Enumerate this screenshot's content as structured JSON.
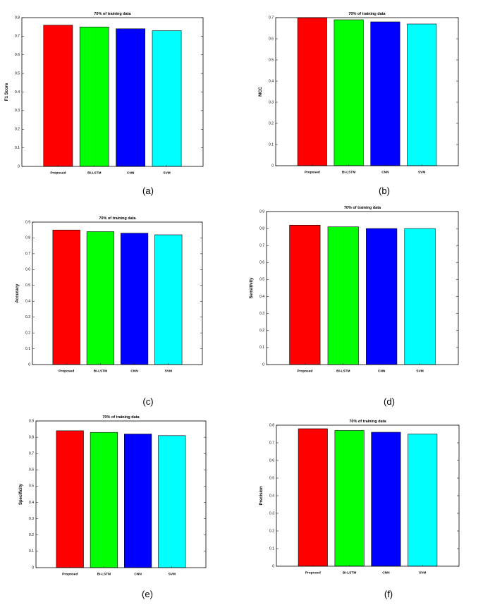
{
  "charts": [
    {
      "id": "a",
      "caption": "(a)"
    },
    {
      "id": "b",
      "caption": "(b)"
    },
    {
      "id": "c",
      "caption": "(c)"
    },
    {
      "id": "d",
      "caption": "(d)"
    },
    {
      "id": "e",
      "caption": "(e)"
    },
    {
      "id": "f",
      "caption": "(f)"
    }
  ],
  "colors": {
    "Proposed": "#ff0000",
    "Bi-LSTM": "#00ff00",
    "CNN": "#0000ff",
    "SVM": "#00ffff"
  },
  "chart_data": [
    {
      "type": "bar",
      "title": "70% of training data",
      "ylabel": "F1 Score",
      "categories": [
        "Proposed",
        "Bi-LSTM",
        "CNN",
        "SVM"
      ],
      "values": [
        0.76,
        0.75,
        0.74,
        0.73
      ],
      "ylim": [
        0,
        0.8
      ],
      "yticks": [
        "0",
        "0.1",
        "0.2",
        "0.3",
        "0.4",
        "0.5",
        "0.6",
        "0.7",
        "0.8"
      ],
      "grid": false
    },
    {
      "type": "bar",
      "title": "70% of training data",
      "ylabel": "MCC",
      "categories": [
        "Proposed",
        "Bi-LSTM",
        "CNN",
        "SVM"
      ],
      "values": [
        0.7,
        0.69,
        0.68,
        0.67
      ],
      "ylim": [
        0,
        0.7
      ],
      "yticks": [
        "0",
        "0.1",
        "0.2",
        "0.3",
        "0.4",
        "0.5",
        "0.6",
        "0.7"
      ],
      "grid": false
    },
    {
      "type": "bar",
      "title": "70% of training data",
      "ylabel": "Accuracy",
      "categories": [
        "Proposed",
        "Bi-LSTM",
        "CNN",
        "SVM"
      ],
      "values": [
        0.85,
        0.84,
        0.83,
        0.82
      ],
      "ylim": [
        0,
        0.9
      ],
      "yticks": [
        "0",
        "0.1",
        "0.2",
        "0.3",
        "0.4",
        "0.5",
        "0.6",
        "0.7",
        "0.8",
        "0.9"
      ],
      "grid": false
    },
    {
      "type": "bar",
      "title": "70% of training data",
      "ylabel": "Sensitivity",
      "categories": [
        "Proposed",
        "Bi-LSTM",
        "CNN",
        "SVM"
      ],
      "values": [
        0.82,
        0.81,
        0.8,
        0.8
      ],
      "ylim": [
        0,
        0.9
      ],
      "yticks": [
        "0",
        "0.1",
        "0.2",
        "0.3",
        "0.4",
        "0.5",
        "0.6",
        "0.7",
        "0.8",
        "0.9"
      ],
      "grid": false
    },
    {
      "type": "bar",
      "title": "70% of training data",
      "ylabel": "Specificity",
      "categories": [
        "Proposed",
        "Bi-LSTM",
        "CNN",
        "SVM"
      ],
      "values": [
        0.84,
        0.83,
        0.82,
        0.81
      ],
      "ylim": [
        0,
        0.9
      ],
      "yticks": [
        "0",
        "0.1",
        "0.2",
        "0.3",
        "0.4",
        "0.5",
        "0.6",
        "0.7",
        "0.8",
        "0.9"
      ],
      "grid": false
    },
    {
      "type": "bar",
      "title": "70% of training data",
      "ylabel": "Precision",
      "categories": [
        "Proposed",
        "Bi-LSTM",
        "CNN",
        "SVM"
      ],
      "values": [
        0.78,
        0.77,
        0.76,
        0.75
      ],
      "ylim": [
        0,
        0.8
      ],
      "yticks": [
        "0",
        "0.1",
        "0.2",
        "0.3",
        "0.4",
        "0.5",
        "0.6",
        "0.7",
        "0.8"
      ],
      "grid": false
    }
  ]
}
